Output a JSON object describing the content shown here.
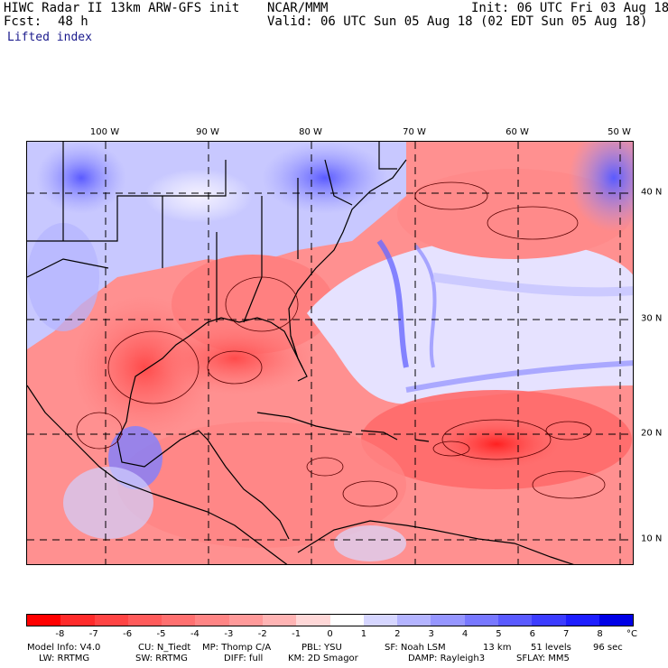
{
  "header": {
    "title": "HIWC Radar II 13km ARW-GFS init",
    "org": "NCAR/MMM",
    "init": "Init: 06 UTC Fri 03 Aug 18",
    "fcst_label": "Fcst:",
    "fcst_value": "48 h",
    "valid": "Valid: 06 UTC Sun 05 Aug 18 (02 EDT Sun 05 Aug 18)",
    "field": "Lifted index"
  },
  "map": {
    "lon_labels": [
      "100 W",
      "90 W",
      "80 W",
      "70 W",
      "60 W",
      "50 W"
    ],
    "lat_labels": [
      "40 N",
      "30 N",
      "20 N",
      "10 N"
    ]
  },
  "colorbar": {
    "unit": "°C",
    "ticks": [
      "-8",
      "-7",
      "-6",
      "-5",
      "-4",
      "-3",
      "-2",
      "-1",
      "0",
      "1",
      "2",
      "3",
      "4",
      "5",
      "6",
      "7",
      "8"
    ],
    "colors": [
      "#ff0000",
      "#ff2b2b",
      "#ff4444",
      "#ff5b5b",
      "#ff7070",
      "#ff8585",
      "#ff9a9a",
      "#ffb4b4",
      "#ffd8d8",
      "#ffffff",
      "#d6d6ff",
      "#b4b4ff",
      "#9696ff",
      "#7878ff",
      "#5a5aff",
      "#3c3cff",
      "#1e1eff",
      "#0000e6"
    ]
  },
  "footer": {
    "model_info": "Model Info: V4.0",
    "cu": "CU: N_Tiedt",
    "mp": "MP: Thomp C/A",
    "pbl": "PBL: YSU",
    "sf": "SF: Noah LSM",
    "res": "13 km",
    "levels": "51 levels",
    "dt": "96 sec",
    "lw": "LW: RRTMG",
    "sw": "SW: RRTMG",
    "diff": "DIFF: full",
    "km": "KM: 2D Smagor",
    "damp": "DAMP: Rayleigh3",
    "sflay": "SFLAY: MM5"
  }
}
